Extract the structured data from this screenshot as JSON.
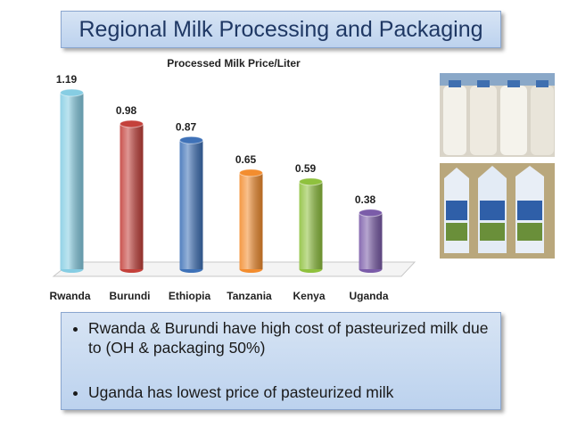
{
  "slide_title": "Regional Milk Processing and Packaging",
  "chart_data": {
    "type": "bar",
    "title": "Processed Milk Price/Liter",
    "categories": [
      "Rwanda",
      "Burundi",
      "Ethiopia",
      "Tanzania",
      "Kenya",
      "Uganda"
    ],
    "values": [
      1.19,
      0.98,
      0.87,
      0.65,
      0.59,
      0.38
    ],
    "colors": [
      "#86cde3",
      "#c4413b",
      "#3f72b8",
      "#f38d2f",
      "#8fc13e",
      "#7b5ca9"
    ]
  },
  "bullets": [
    "Rwanda & Burundi have high cost of pasteurized milk due to  (OH & packaging 50%)",
    "Uganda has lowest price of pasteurized milk"
  ]
}
